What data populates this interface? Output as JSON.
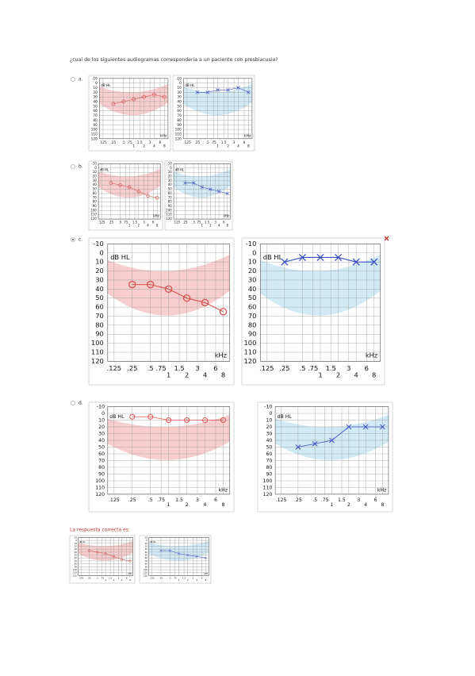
{
  "question": "¿cual de los siguientes audiogramas corresponderia a un paciente con presbiacusia?",
  "axes": {
    "ylabel": "dB HL",
    "xunit": "kHz",
    "ylim": [
      -10,
      120
    ],
    "yticks": [
      -10,
      0,
      10,
      20,
      30,
      40,
      50,
      60,
      70,
      80,
      90,
      100,
      110,
      120
    ],
    "xlim": [
      0.125,
      8
    ],
    "xticks": [
      {
        "value": 0.125,
        "label": ".125"
      },
      {
        "value": 0.25,
        "label": ".25"
      },
      {
        "value": 0.5,
        "label": ".5"
      },
      {
        "value": 0.75,
        "label": ".75"
      },
      1,
      {
        "value": 1.5,
        "label": "1.5"
      },
      2,
      3,
      4,
      6,
      8
    ],
    "points_x": [
      0.25,
      0.5,
      1,
      2,
      4,
      8
    ],
    "right_color": "#d9534f",
    "left_color": "#3b4fc4"
  },
  "options": [
    {
      "label": "a.",
      "selected": false,
      "right_ear": [
        45,
        40,
        35,
        30,
        25,
        30
      ],
      "left_ear": [
        20,
        20,
        15,
        15,
        10,
        20
      ]
    },
    {
      "label": "b.",
      "selected": false,
      "right_ear": [
        35,
        40,
        45,
        55,
        65,
        70
      ],
      "left_ear": [
        35,
        35,
        45,
        50,
        55,
        60
      ]
    },
    {
      "label": "c.",
      "selected": true,
      "right_ear": [
        35,
        35,
        40,
        50,
        55,
        65
      ],
      "left_ear": [
        10,
        5,
        5,
        5,
        10,
        10
      ]
    },
    {
      "label": "d.",
      "selected": false,
      "right_ear": [
        5,
        5,
        10,
        10,
        10,
        10
      ],
      "left_ear": [
        50,
        45,
        40,
        20,
        20,
        20
      ]
    }
  ],
  "answer": {
    "label": "La respuesta correcta es:",
    "right_ear": [
      35,
      40,
      45,
      55,
      65,
      70
    ],
    "left_ear": [
      35,
      35,
      45,
      50,
      55,
      60
    ]
  }
}
